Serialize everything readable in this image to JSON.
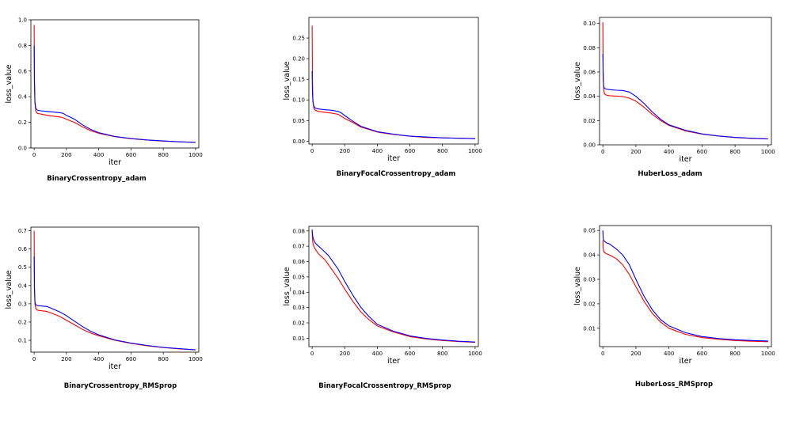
{
  "chart_data": [
    {
      "type": "line",
      "title": "BinaryCrossentropy_adam",
      "xlabel": "iter",
      "ylabel": "loss_value",
      "xlim": [
        -20,
        1020
      ],
      "ylim": [
        0,
        1.0
      ],
      "xticks": [
        0,
        200,
        400,
        600,
        800,
        1000
      ],
      "yticks": [
        0.0,
        0.2,
        0.4,
        0.6,
        0.8,
        1.0
      ],
      "ytick_labels": [
        "0.0",
        "0.2",
        "0.4",
        "0.6",
        "0.8",
        "1.0"
      ],
      "grid": false,
      "series": [
        {
          "color": "#ff0000",
          "x": [
            0,
            2,
            5,
            10,
            20,
            40,
            80,
            120,
            160,
            180,
            200,
            250,
            300,
            350,
            400,
            500,
            600,
            700,
            800,
            900,
            1000
          ],
          "y": [
            0.96,
            0.55,
            0.35,
            0.29,
            0.27,
            0.265,
            0.255,
            0.248,
            0.242,
            0.235,
            0.225,
            0.2,
            0.165,
            0.135,
            0.115,
            0.088,
            0.072,
            0.062,
            0.054,
            0.048,
            0.043
          ]
        },
        {
          "color": "#0000ff",
          "x": [
            0,
            2,
            5,
            10,
            20,
            40,
            80,
            120,
            160,
            180,
            200,
            250,
            300,
            350,
            400,
            500,
            600,
            700,
            800,
            900,
            1000
          ],
          "y": [
            0.8,
            0.5,
            0.36,
            0.31,
            0.295,
            0.29,
            0.285,
            0.28,
            0.275,
            0.27,
            0.255,
            0.225,
            0.18,
            0.145,
            0.12,
            0.09,
            0.074,
            0.063,
            0.055,
            0.048,
            0.044
          ]
        }
      ]
    },
    {
      "type": "line",
      "title": "BinaryFocalCrossentropy_adam",
      "xlabel": "iter",
      "ylabel": "loss_value",
      "xlim": [
        -20,
        1020
      ],
      "ylim": [
        -0.007,
        0.3
      ],
      "xticks": [
        0,
        200,
        400,
        600,
        800,
        1000
      ],
      "yticks": [
        0.0,
        0.05,
        0.1,
        0.15,
        0.2,
        0.25
      ],
      "ytick_labels": [
        "0.00",
        "0.05",
        "0.10",
        "0.15",
        "0.20",
        "0.25"
      ],
      "grid": false,
      "series": [
        {
          "color": "#ff0000",
          "x": [
            0,
            2,
            5,
            10,
            20,
            40,
            80,
            120,
            160,
            180,
            200,
            250,
            300,
            400,
            500,
            600,
            700,
            800,
            900,
            1000
          ],
          "y": [
            0.28,
            0.15,
            0.1,
            0.08,
            0.075,
            0.072,
            0.07,
            0.068,
            0.065,
            0.06,
            0.055,
            0.045,
            0.034,
            0.022,
            0.016,
            0.012,
            0.009,
            0.008,
            0.007,
            0.006
          ]
        },
        {
          "color": "#0000ff",
          "x": [
            0,
            2,
            5,
            10,
            20,
            40,
            80,
            120,
            160,
            180,
            200,
            250,
            300,
            400,
            500,
            600,
            700,
            800,
            900,
            1000
          ],
          "y": [
            0.17,
            0.12,
            0.095,
            0.085,
            0.08,
            0.078,
            0.076,
            0.075,
            0.072,
            0.068,
            0.062,
            0.048,
            0.036,
            0.023,
            0.017,
            0.012,
            0.01,
            0.008,
            0.007,
            0.006
          ]
        }
      ]
    },
    {
      "type": "line",
      "title": "HuberLoss_adam",
      "xlabel": "iter",
      "ylabel": "loss_value",
      "xlim": [
        -20,
        1020
      ],
      "ylim": [
        0,
        0.105
      ],
      "xticks": [
        0,
        200,
        400,
        600,
        800,
        1000
      ],
      "yticks": [
        0.0,
        0.02,
        0.04,
        0.06,
        0.08,
        0.1
      ],
      "ytick_labels": [
        "0.00",
        "0.02",
        "0.04",
        "0.06",
        "0.08",
        "0.10"
      ],
      "grid": false,
      "series": [
        {
          "color": "#ff0000",
          "x": [
            0,
            2,
            5,
            10,
            20,
            40,
            80,
            120,
            160,
            200,
            250,
            300,
            350,
            400,
            500,
            600,
            700,
            800,
            900,
            1000
          ],
          "y": [
            0.101,
            0.06,
            0.045,
            0.042,
            0.041,
            0.0405,
            0.0402,
            0.0398,
            0.0385,
            0.036,
            0.031,
            0.025,
            0.02,
            0.016,
            0.0115,
            0.0088,
            0.0072,
            0.006,
            0.0053,
            0.0048
          ]
        },
        {
          "color": "#0000ff",
          "x": [
            0,
            2,
            5,
            10,
            20,
            40,
            80,
            120,
            160,
            200,
            250,
            300,
            350,
            400,
            500,
            600,
            700,
            800,
            900,
            1000
          ],
          "y": [
            0.075,
            0.055,
            0.048,
            0.0465,
            0.046,
            0.0455,
            0.045,
            0.0448,
            0.0435,
            0.04,
            0.034,
            0.027,
            0.021,
            0.0165,
            0.012,
            0.009,
            0.0073,
            0.0061,
            0.0054,
            0.0049
          ]
        }
      ]
    },
    {
      "type": "line",
      "title": "BinaryCrossentropy_RMSprop",
      "xlabel": "iter",
      "ylabel": "loss_value",
      "xlim": [
        -20,
        1020
      ],
      "ylim": [
        0.035,
        0.72
      ],
      "xticks": [
        0,
        200,
        400,
        600,
        800,
        1000
      ],
      "yticks": [
        0.1,
        0.2,
        0.3,
        0.4,
        0.5,
        0.6,
        0.7
      ],
      "ytick_labels": [
        "0.1",
        "0.2",
        "0.3",
        "0.4",
        "0.5",
        "0.6",
        "0.7"
      ],
      "grid": false,
      "series": [
        {
          "color": "#ff0000",
          "x": [
            0,
            2,
            5,
            10,
            20,
            40,
            80,
            120,
            160,
            200,
            250,
            300,
            350,
            400,
            500,
            600,
            700,
            800,
            900,
            1000
          ],
          "y": [
            0.7,
            0.4,
            0.3,
            0.275,
            0.265,
            0.262,
            0.258,
            0.245,
            0.23,
            0.21,
            0.185,
            0.16,
            0.14,
            0.125,
            0.1,
            0.083,
            0.07,
            0.06,
            0.053,
            0.047
          ]
        },
        {
          "color": "#0000ff",
          "x": [
            0,
            2,
            5,
            10,
            20,
            40,
            80,
            120,
            160,
            200,
            250,
            300,
            350,
            400,
            500,
            600,
            700,
            800,
            900,
            1000
          ],
          "y": [
            0.56,
            0.38,
            0.31,
            0.295,
            0.29,
            0.288,
            0.285,
            0.27,
            0.255,
            0.235,
            0.205,
            0.175,
            0.15,
            0.13,
            0.102,
            0.085,
            0.072,
            0.061,
            0.054,
            0.048
          ]
        }
      ]
    },
    {
      "type": "line",
      "title": "BinaryFocalCrossentropy_RMSprop",
      "xlabel": "iter",
      "ylabel": "loss_value",
      "xlim": [
        -20,
        1020
      ],
      "ylim": [
        0.0045,
        0.083
      ],
      "xticks": [
        0,
        200,
        400,
        600,
        800,
        1000
      ],
      "yticks": [
        0.01,
        0.02,
        0.03,
        0.04,
        0.05,
        0.06,
        0.07,
        0.08
      ],
      "ytick_labels": [
        "0.01",
        "0.02",
        "0.03",
        "0.04",
        "0.05",
        "0.06",
        "0.07",
        "0.08"
      ],
      "grid": false,
      "series": [
        {
          "color": "#ff0000",
          "x": [
            0,
            2,
            5,
            10,
            20,
            40,
            60,
            80,
            100,
            120,
            160,
            200,
            250,
            300,
            350,
            400,
            500,
            600,
            700,
            800,
            900,
            1000
          ],
          "y": [
            0.08,
            0.075,
            0.072,
            0.07,
            0.068,
            0.065,
            0.063,
            0.061,
            0.058,
            0.055,
            0.049,
            0.042,
            0.034,
            0.027,
            0.022,
            0.018,
            0.014,
            0.011,
            0.0095,
            0.0085,
            0.0078,
            0.0073
          ]
        },
        {
          "color": "#0000ff",
          "x": [
            0,
            2,
            5,
            10,
            20,
            40,
            60,
            80,
            100,
            120,
            160,
            200,
            250,
            300,
            350,
            400,
            500,
            600,
            700,
            800,
            900,
            1000
          ],
          "y": [
            0.081,
            0.078,
            0.076,
            0.074,
            0.072,
            0.07,
            0.068,
            0.066,
            0.064,
            0.061,
            0.055,
            0.047,
            0.038,
            0.03,
            0.024,
            0.019,
            0.0145,
            0.0115,
            0.0098,
            0.0088,
            0.008,
            0.0075
          ]
        }
      ]
    },
    {
      "type": "line",
      "title": "HuberLoss_RMSprop",
      "xlabel": "iter",
      "ylabel": "loss_value",
      "xlim": [
        -20,
        1020
      ],
      "ylim": [
        0.0025,
        0.052
      ],
      "xticks": [
        0,
        200,
        400,
        600,
        800,
        1000
      ],
      "yticks": [
        0.01,
        0.02,
        0.03,
        0.04,
        0.05
      ],
      "ytick_labels": [
        "0.01",
        "0.02",
        "0.03",
        "0.04",
        "0.05"
      ],
      "grid": false,
      "series": [
        {
          "color": "#ff0000",
          "x": [
            0,
            2,
            5,
            10,
            20,
            40,
            80,
            120,
            160,
            200,
            250,
            300,
            350,
            400,
            500,
            600,
            700,
            800,
            900,
            1000
          ],
          "y": [
            0.046,
            0.043,
            0.0415,
            0.041,
            0.0405,
            0.04,
            0.0385,
            0.036,
            0.032,
            0.027,
            0.021,
            0.016,
            0.0125,
            0.01,
            0.0075,
            0.0062,
            0.0055,
            0.005,
            0.0047,
            0.0045
          ]
        },
        {
          "color": "#0000ff",
          "x": [
            0,
            2,
            5,
            10,
            20,
            40,
            80,
            120,
            160,
            200,
            250,
            300,
            350,
            400,
            500,
            600,
            700,
            800,
            900,
            1000
          ],
          "y": [
            0.05,
            0.047,
            0.046,
            0.0455,
            0.045,
            0.0445,
            0.0425,
            0.04,
            0.036,
            0.03,
            0.023,
            0.0175,
            0.0135,
            0.011,
            0.0082,
            0.0066,
            0.0058,
            0.0053,
            0.005,
            0.0048
          ]
        }
      ]
    }
  ]
}
